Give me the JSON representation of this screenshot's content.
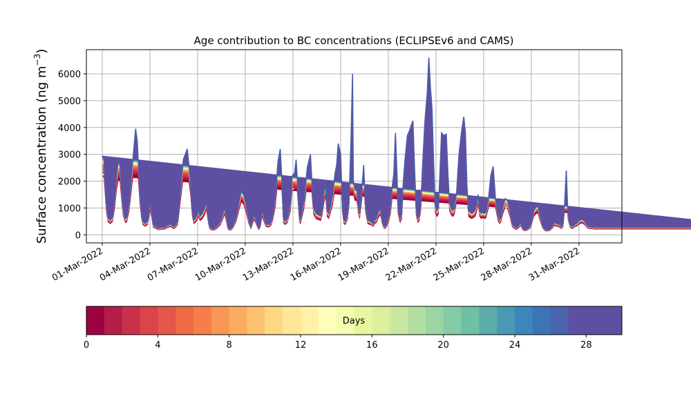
{
  "chart_data": {
    "type": "area",
    "title": "Age contribution to BC concentrations (ECLIPSEv6 and CAMS)",
    "ylabel": "Surface concentration (ng m$^{-3}$)",
    "ylabel_text": "Surface concentration (ng m",
    "ylabel_unit_exp": "−3",
    "ylabel_close": ")",
    "xlabel": "",
    "ylim": [
      -300,
      6900
    ],
    "xlim_day": [
      -1.0,
      32.7
    ],
    "grid": true,
    "yticks": [
      0,
      1000,
      2000,
      3000,
      4000,
      5000,
      6000
    ],
    "xtick_labels": [
      "01-Mar-2022",
      "04-Mar-2022",
      "07-Mar-2022",
      "10-Mar-2022",
      "13-Mar-2022",
      "16-Mar-2022",
      "19-Mar-2022",
      "22-Mar-2022",
      "25-Mar-2022",
      "28-Mar-2022",
      "31-Mar-2022"
    ],
    "xtick_days": [
      0,
      3,
      6,
      9,
      12,
      15,
      18,
      21,
      24,
      27,
      30
    ],
    "total_series": {
      "day": [
        0,
        0.1,
        0.25,
        0.35,
        0.5,
        0.65,
        0.8,
        0.9,
        1.0,
        1.1,
        1.3,
        1.45,
        1.55,
        1.7,
        1.85,
        2.0,
        2.1,
        2.2,
        2.35,
        2.45,
        2.55,
        2.7,
        2.85,
        2.95,
        3.0,
        3.1,
        3.2,
        3.5,
        3.8,
        3.95,
        4.1,
        4.3,
        4.5,
        4.6,
        4.75,
        4.9,
        5.1,
        5.35,
        5.55,
        5.65,
        5.75,
        5.85,
        5.95,
        6.05,
        6.15,
        6.3,
        6.45,
        6.55,
        6.65,
        6.75,
        6.85,
        6.95,
        7.05,
        7.2,
        7.45,
        7.7,
        7.8,
        7.9,
        8.0,
        8.15,
        8.3,
        8.45,
        8.6,
        8.75,
        8.9,
        9.05,
        9.2,
        9.35,
        9.45,
        9.55,
        9.65,
        9.75,
        9.85,
        9.95,
        10.05,
        10.15,
        10.3,
        10.5,
        10.65,
        10.75,
        10.9,
        11.05,
        11.2,
        11.3,
        11.4,
        11.5,
        11.65,
        11.85,
        11.95,
        12.1,
        12.2,
        12.3,
        12.4,
        12.45,
        12.5,
        12.55,
        12.7,
        12.9,
        13.1,
        13.2,
        13.3,
        13.45,
        13.6,
        13.75,
        13.85,
        13.95,
        14.05,
        14.15,
        14.25,
        14.35,
        14.5,
        14.65,
        14.75,
        14.85,
        15.0,
        15.1,
        15.2,
        15.3,
        15.45,
        15.55,
        15.65,
        15.75,
        15.8,
        15.9,
        16.0,
        16.05,
        16.1,
        16.2,
        16.35,
        16.45,
        16.55,
        16.7,
        16.85,
        16.95,
        17.05,
        17.15,
        17.25,
        17.35,
        17.5,
        17.6,
        17.7,
        17.8,
        17.9,
        18.05,
        18.15,
        18.25,
        18.35,
        18.45,
        18.55,
        18.6,
        18.7,
        18.75,
        18.85,
        18.9,
        19.05,
        19.2,
        19.35,
        19.45,
        19.55,
        19.65,
        19.75,
        19.85,
        19.95,
        20.05,
        20.15,
        20.3,
        20.45,
        20.55,
        20.65,
        20.75,
        20.85,
        20.95,
        21.05,
        21.15,
        21.25,
        21.35,
        21.5,
        21.65,
        21.75,
        21.85,
        21.95,
        22.05,
        22.15,
        22.3,
        22.45,
        22.6,
        22.75,
        22.85,
        22.95,
        23.05,
        23.15,
        23.25,
        23.35,
        23.45,
        23.55,
        23.65,
        23.75,
        23.85,
        23.95,
        24.05,
        24.15,
        24.3,
        24.45,
        24.6,
        24.75,
        24.9,
        25.0,
        25.1,
        25.2,
        25.35,
        25.5,
        25.65,
        25.8,
        25.95,
        26.05,
        26.15,
        26.25,
        26.35,
        26.45,
        26.55,
        26.65,
        26.75,
        26.85,
        26.95,
        27.05,
        27.15,
        27.25,
        27.4,
        27.55,
        27.7,
        27.85,
        28.0,
        28.15,
        28.3,
        28.45,
        28.6,
        28.75,
        28.9,
        29.0,
        29.1,
        29.2,
        29.3,
        29.45,
        29.6,
        29.75,
        29.9,
        30.05,
        30.2,
        30.35,
        30.5,
        30.65,
        30.8,
        30.95,
        31.1,
        31.25,
        31.4,
        31.55,
        31.7,
        31.85,
        32.0,
        32.15,
        32.3,
        32.45,
        32.6,
        32.7,
        32.85,
        33.0,
        33.15,
        33.3,
        33.45,
        33.6,
        33.75,
        33.9,
        34.05,
        34.2,
        34.35,
        34.5,
        34.65,
        34.8,
        34.95,
        35.1,
        35.25,
        35.4,
        35.55,
        35.7,
        35.85,
        36.0,
        36.15,
        36.3,
        36.45,
        36.6,
        36.75,
        36.9,
        37.05,
        37.2,
        37.35,
        37.5,
        37.65,
        37.8,
        37.95,
        38.1,
        38.25,
        38.4,
        38.55,
        38.7,
        38.85,
        39.0,
        39.15,
        39.3,
        39.45,
        39.6,
        39.75,
        39.9,
        40.05,
        40.2,
        40.35,
        40.5,
        40.65,
        40.8,
        40.95,
        41.1,
        41.25,
        41.4,
        41.55,
        41.7,
        41.85,
        42.0
      ],
      "value": [
        2950,
        2850,
        1200,
        650,
        550,
        650,
        1400,
        2200,
        2700,
        2700,
        1000,
        600,
        650,
        1200,
        2300,
        3300,
        3950,
        3500,
        1700,
        900,
        500,
        420,
        500,
        900,
        1250,
        900,
        380,
        250,
        270,
        280,
        350,
        400,
        300,
        350,
        500,
        1500,
        2800,
        3200,
        2000,
        1000,
        550,
        600,
        700,
        900,
        700,
        800,
        1000,
        1250,
        700,
        300,
        250,
        220,
        230,
        300,
        500,
        1000,
        700,
        300,
        220,
        250,
        450,
        700,
        1200,
        1650,
        1500,
        1100,
        600,
        300,
        520,
        750,
        600,
        400,
        250,
        380,
        900,
        700,
        400,
        380,
        500,
        800,
        1400,
        2700,
        3200,
        2100,
        600,
        500,
        600,
        1200,
        2200,
        2300,
        2800,
        1800,
        700,
        550,
        600,
        800,
        1300,
        2500,
        3000,
        1900,
        1000,
        800,
        750,
        700,
        1000,
        1550,
        1900,
        900,
        800,
        1050,
        1500,
        2300,
        2600,
        3400,
        3000,
        1200,
        550,
        500,
        800,
        1600,
        3500,
        6000,
        2000,
        1700,
        1700,
        1500,
        1100,
        800,
        1800,
        2600,
        1200,
        550,
        500,
        480,
        400,
        550,
        600,
        800,
        1000,
        600,
        350,
        300,
        400,
        700,
        1100,
        1800,
        2300,
        3800,
        2200,
        1100,
        700,
        600,
        800,
        1600,
        2800,
        3700,
        3900,
        4100,
        4250,
        2500,
        1000,
        600,
        700,
        1200,
        2500,
        4200,
        5300,
        6600,
        5500,
        4700,
        2700,
        1100,
        900,
        1000,
        2300,
        3800,
        3700,
        3750,
        2300,
        1200,
        1000,
        900,
        1000,
        1600,
        3000,
        3800,
        4400,
        3800,
        1800,
        900,
        850,
        800,
        850,
        900,
        1100,
        1500,
        900,
        800,
        850,
        800,
        850,
        1300,
        2200,
        2550,
        1300,
        700,
        550,
        650,
        1000,
        1350,
        1300,
        900,
        400,
        300,
        250,
        300,
        380,
        450,
        250,
        200,
        200,
        230,
        280,
        350,
        600,
        900,
        1000,
        1100,
        700,
        350,
        200,
        180,
        200,
        300,
        450,
        420,
        380,
        300,
        400,
        1200,
        2400,
        800,
        350,
        300,
        400,
        450,
        550,
        580,
        500,
        350,
        300,
        290,
        280,
        270,
        280,
        280,
        280,
        280,
        280,
        280,
        280,
        280,
        280,
        280,
        280,
        280,
        280,
        280,
        280,
        280,
        280,
        280,
        280,
        280,
        280,
        280,
        280,
        280,
        280,
        280,
        280,
        280,
        280,
        280,
        280,
        280,
        280,
        280,
        280,
        280,
        280,
        280,
        280,
        280,
        280,
        280,
        280,
        280,
        280,
        280,
        280,
        280,
        280,
        280,
        280,
        280,
        280,
        280,
        280,
        280,
        280,
        280,
        280,
        280,
        280,
        280,
        280,
        280,
        280,
        280,
        280,
        280,
        280,
        280,
        280,
        280
      ]
    },
    "layer_fractions": [
      0.78,
      0.05,
      0.03,
      0.025,
      0.02,
      0.015,
      0.012,
      0.01,
      0.008,
      0.007,
      0.006,
      0.005,
      0.005,
      0.004,
      0.004,
      0.004,
      0.004,
      0.004,
      0.004,
      0.004,
      0.004,
      0.004,
      0.004,
      0.004,
      0.004,
      0.004,
      0.004,
      0.004,
      0.004,
      0.004
    ],
    "colorbar": {
      "label": "Days",
      "min": 0,
      "max": 30,
      "ticks": [
        0,
        4,
        8,
        12,
        16,
        20,
        24,
        28
      ],
      "colors": [
        "#9e0142",
        "#b51d48",
        "#c9314b",
        "#da444b",
        "#e5574a",
        "#ef6a45",
        "#f67e4b",
        "#f99655",
        "#fcac60",
        "#fdc371",
        "#fed783",
        "#fee796",
        "#fff2a8",
        "#fffdbc",
        "#f6fbb2",
        "#eaf69e",
        "#dbef9c",
        "#c9e89f",
        "#b4dfa2",
        "#9cd5a4",
        "#84cba6",
        "#6fc0a5",
        "#5cadaa",
        "#4a98b4",
        "#3c86bb",
        "#3d74b6",
        "#4a63ac",
        "#5e4fa2",
        "#5e4fa2",
        "#5e4fa2"
      ]
    }
  }
}
